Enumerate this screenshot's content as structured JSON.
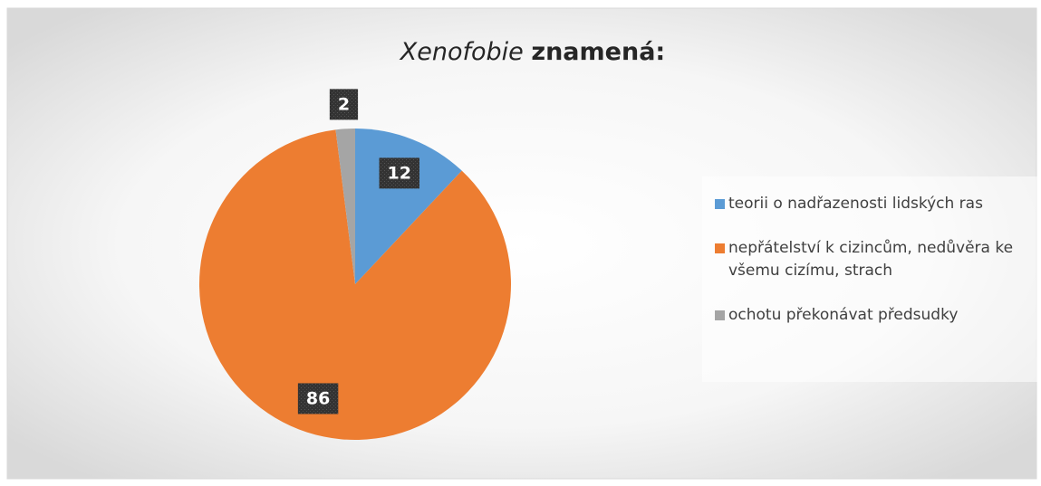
{
  "chart_data": {
    "type": "pie",
    "title": [
      "Xenofobie",
      "znamená:"
    ],
    "categories": [
      "teorii o nadřazenosti lidských ras",
      "nepřátelství k cizincům, nedůvěra ke všemu cizímu, strach",
      "ochotu překonávat předsudky"
    ],
    "values": [
      12,
      86,
      2
    ],
    "colors": [
      "#5b9bd5",
      "#ed7d31",
      "#a5a5a5"
    ],
    "legend": "right"
  }
}
